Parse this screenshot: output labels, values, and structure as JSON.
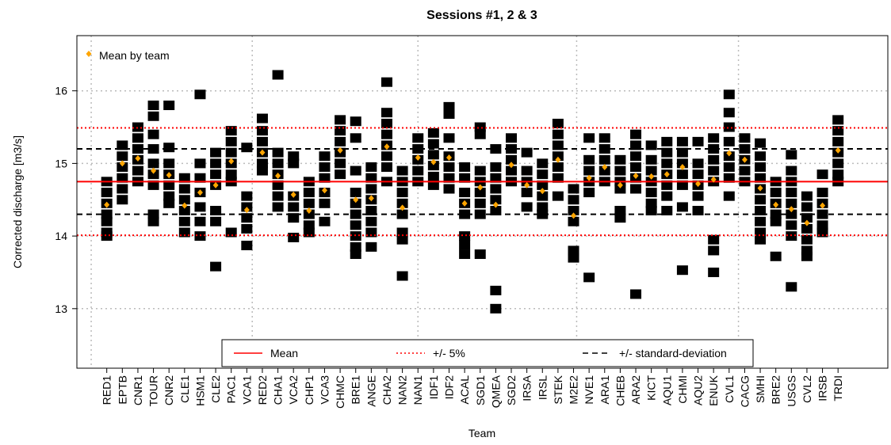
{
  "chart_data": {
    "type": "strip",
    "title": "Sessions #1, 2 & 3",
    "xlabel": "Team",
    "ylabel": "Corrected discharge [m3/s]",
    "categories": [
      "RED1",
      "EPTB",
      "CNR1",
      "TOUR",
      "CNR2",
      "CLE1",
      "HSM1",
      "CLE2",
      "PAC1",
      "VCA1",
      "RED2",
      "CHA1",
      "VCA2",
      "CHP1",
      "VCA3",
      "CHMC",
      "BRE1",
      "ANGE",
      "CHA2",
      "NAN2",
      "NAN1",
      "IDF1",
      "IDF2",
      "ACAL",
      "SGD1",
      "QMEA",
      "SGD2",
      "IRSA",
      "IRSL",
      "STEK",
      "M2E2",
      "NVE1",
      "ARA1",
      "CHEB",
      "ARA2",
      "KICT",
      "AQU1",
      "CHMI",
      "AQU2",
      "ENUK",
      "CVL1",
      "CACG",
      "SMHI",
      "BRE2",
      "USGS",
      "CVL2",
      "IRSB",
      "TRDI"
    ],
    "measurements": [
      [
        14.75,
        14.6,
        14.45,
        14.3,
        14.2,
        14.05,
        14.0
      ],
      [
        15.25,
        15.1,
        14.95,
        14.8,
        14.65,
        14.5
      ],
      [
        15.5,
        15.35,
        15.2,
        15.05,
        14.9,
        14.75
      ],
      [
        15.8,
        15.65,
        15.4,
        15.2,
        15.0,
        14.85,
        14.7,
        14.3,
        14.2
      ],
      [
        15.8,
        15.22,
        15.0,
        14.85,
        14.7,
        14.55,
        14.45
      ],
      [
        14.8,
        14.65,
        14.5,
        14.35,
        14.2,
        14.05
      ],
      [
        15.95,
        15.0,
        14.8,
        14.6,
        14.4,
        14.2,
        14.0
      ],
      [
        15.15,
        15.0,
        14.85,
        14.7,
        14.35,
        14.2,
        13.58
      ],
      [
        15.45,
        15.3,
        15.15,
        15.0,
        14.85,
        14.75,
        14.05
      ],
      [
        15.22,
        14.55,
        14.4,
        14.25,
        14.1,
        13.87
      ],
      [
        15.62,
        15.45,
        15.3,
        15.15,
        15.0,
        14.9
      ],
      [
        16.22,
        15.15,
        15.0,
        14.85,
        14.7,
        14.55,
        14.4
      ],
      [
        15.1,
        15.0,
        14.55,
        14.4,
        14.25,
        13.98
      ],
      [
        14.75,
        14.6,
        14.45,
        14.3,
        14.15,
        14.05
      ],
      [
        15.1,
        14.95,
        14.8,
        14.6,
        14.45,
        14.2
      ],
      [
        15.6,
        15.45,
        15.3,
        15.15,
        15.0,
        14.85
      ],
      [
        15.58,
        15.35,
        14.9,
        14.6,
        14.45,
        14.3,
        14.15,
        14.0,
        13.85,
        13.75
      ],
      [
        14.95,
        14.8,
        14.65,
        14.5,
        14.35,
        14.2,
        14.05,
        13.85
      ],
      [
        16.12,
        15.7,
        15.55,
        15.4,
        15.25,
        15.1,
        14.95,
        14.75
      ],
      [
        14.9,
        14.75,
        14.6,
        14.45,
        14.3,
        14.05,
        13.95,
        13.45
      ],
      [
        15.35,
        15.2,
        15.05,
        14.9,
        14.75
      ],
      [
        15.42,
        15.27,
        15.12,
        14.97,
        14.82,
        14.7
      ],
      [
        15.78,
        15.68,
        15.35,
        15.1,
        14.95,
        14.8,
        14.65
      ],
      [
        14.95,
        14.8,
        14.6,
        14.45,
        14.3,
        14.0,
        13.88,
        13.75
      ],
      [
        15.5,
        15.4,
        14.9,
        14.75,
        14.6,
        14.45,
        14.3,
        13.75
      ],
      [
        15.2,
        14.95,
        14.8,
        14.65,
        14.5,
        14.35,
        13.25,
        13.0
      ],
      [
        15.35,
        15.2,
        15.05,
        14.9,
        14.75
      ],
      [
        15.15,
        14.9,
        14.75,
        14.6,
        14.4
      ],
      [
        15.0,
        14.85,
        14.7,
        14.55,
        14.4,
        14.3
      ],
      [
        15.55,
        15.4,
        15.25,
        15.1,
        14.95,
        14.8,
        14.55
      ],
      [
        14.65,
        14.5,
        14.35,
        14.2,
        13.8,
        13.7
      ],
      [
        15.35,
        15.05,
        14.9,
        14.75,
        14.6,
        13.43
      ],
      [
        15.35,
        15.2,
        15.05,
        14.9,
        14.75
      ],
      [
        15.05,
        14.9,
        14.75,
        14.65,
        14.35,
        14.25
      ],
      [
        15.4,
        15.25,
        15.1,
        14.95,
        14.8,
        14.65,
        13.2
      ],
      [
        15.25,
        15.05,
        14.9,
        14.75,
        14.6,
        14.45,
        14.35
      ],
      [
        15.3,
        15.15,
        15.0,
        14.85,
        14.7,
        14.55,
        14.35
      ],
      [
        15.3,
        15.15,
        15.0,
        14.85,
        14.7,
        14.4,
        13.53
      ],
      [
        15.3,
        15.0,
        14.85,
        14.7,
        14.55,
        14.35
      ],
      [
        15.35,
        15.2,
        15.05,
        14.9,
        14.75,
        13.95,
        13.8,
        13.5
      ],
      [
        15.95,
        15.7,
        15.5,
        15.3,
        15.1,
        14.95,
        14.8,
        14.55
      ],
      [
        15.35,
        15.2,
        15.05,
        14.9,
        14.75
      ],
      [
        15.28,
        15.1,
        14.95,
        14.8,
        14.65,
        14.5,
        14.35,
        14.2,
        14.05,
        13.95
      ],
      [
        14.75,
        14.6,
        14.45,
        14.3,
        14.2,
        13.72
      ],
      [
        15.12,
        14.9,
        14.75,
        14.6,
        14.45,
        14.3,
        14.15,
        14.0,
        13.3
      ],
      [
        14.55,
        14.4,
        14.25,
        14.1,
        13.95,
        13.8,
        13.72
      ],
      [
        14.85,
        14.6,
        14.45,
        14.3,
        14.15,
        14.05
      ],
      [
        15.6,
        15.45,
        15.3,
        15.15,
        15.0,
        14.85,
        14.75
      ]
    ],
    "measurement_color": "#000000",
    "means": {
      "name": "Mean by team",
      "color": "#ffa500",
      "values": [
        14.43,
        15.0,
        15.07,
        14.9,
        14.84,
        14.42,
        14.6,
        14.7,
        15.03,
        14.36,
        15.15,
        14.83,
        14.57,
        14.35,
        14.63,
        15.18,
        14.5,
        14.52,
        15.23,
        14.39,
        15.08,
        15.02,
        15.08,
        14.45,
        14.67,
        14.43,
        14.98,
        14.7,
        14.62,
        15.05,
        14.28,
        14.8,
        14.95,
        14.7,
        14.83,
        14.82,
        14.85,
        14.95,
        14.72,
        14.78,
        15.14,
        15.05,
        14.66,
        14.43,
        14.37,
        14.18,
        14.42,
        15.18
      ]
    },
    "reference_lines": [
      {
        "name": "Mean",
        "color": "#ff0000",
        "style": "solid",
        "values": [
          14.75
        ]
      },
      {
        "name": "+/- 5%",
        "color": "#ff0000",
        "style": "dotted",
        "values": [
          15.49,
          14.01
        ]
      },
      {
        "name": "+/- standard-deviation",
        "color": "#000000",
        "style": "dashed",
        "values": [
          15.2,
          14.3
        ]
      }
    ],
    "ylim": [
      12.18,
      16.76
    ],
    "yticks": [
      13,
      14,
      15,
      16
    ],
    "xlim": [
      -0.92,
      51.2
    ],
    "xgrid": [
      0,
      10.35,
      21,
      31.2,
      41.6
    ],
    "grid": true
  }
}
